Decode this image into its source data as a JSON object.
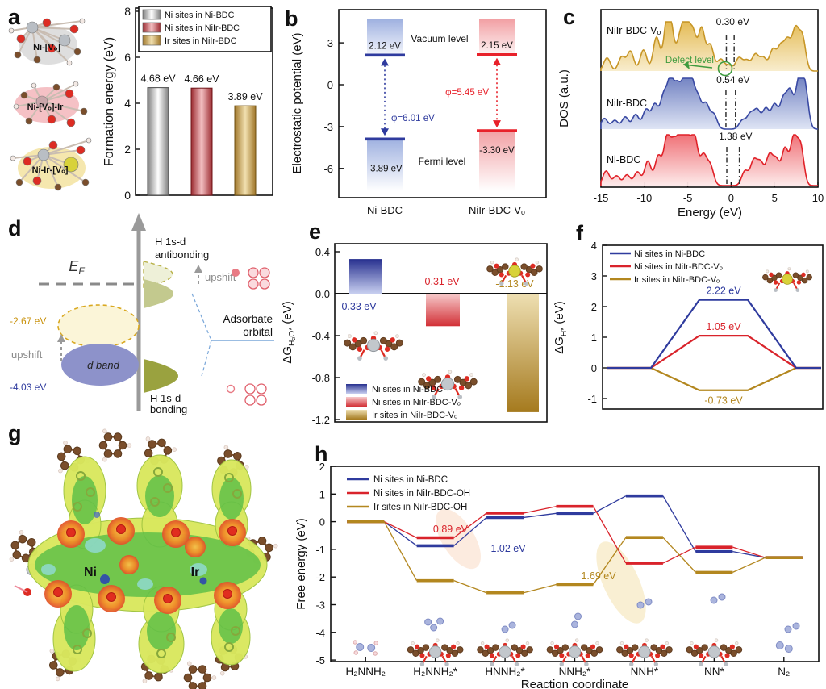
{
  "colors": {
    "blue": "#2f3b9e",
    "red": "#d9232b",
    "gold": "#b3871f",
    "green": "#3f9b3f",
    "gray": "#8a8a8a"
  },
  "panel_a": {
    "letter": "a",
    "structures": [
      {
        "label": "Ni-[Vₒ]"
      },
      {
        "label": "Ni-[Vₒ]-Ir"
      },
      {
        "label": "Ni-Ir-[Vₒ]"
      }
    ],
    "chart_data": {
      "type": "bar",
      "ylabel": "Formation energy (eV)",
      "ylim": [
        0,
        8
      ],
      "yticks": [
        0,
        2,
        4,
        6,
        8
      ],
      "categories": [
        "Ni sites in Ni-BDC",
        "Ni sites in NiIr-BDC",
        "Ir sites in NiIr-BDC"
      ],
      "values": [
        4.68,
        4.66,
        3.89
      ],
      "value_labels": [
        "4.68 eV",
        "4.66 eV",
        "3.89 eV"
      ],
      "legend": [
        "Ni sites in Ni-BDC",
        "Ni sites in NiIr-BDC",
        "Ir sites in NiIr-BDC"
      ],
      "bar_styles": [
        "silver",
        "red",
        "gold"
      ]
    }
  },
  "panel_b": {
    "letter": "b",
    "ylabel": "Electrostatic potential (eV)",
    "yticks": [
      3,
      0,
      -3,
      -6
    ],
    "vacuum_label": "Vacuum level",
    "fermi_label": "Fermi level",
    "chart_data": {
      "type": "level",
      "systems": [
        {
          "name": "Ni-BDC",
          "vacuum_eV": 2.12,
          "fermi_eV": -3.89,
          "vacuum_text": "2.12 eV",
          "fermi_text": "-3.89 eV",
          "work_function": "φ=6.01 eV",
          "color": "blue"
        },
        {
          "name": "NiIr-BDC-Vₒ",
          "vacuum_eV": 2.15,
          "fermi_eV": -3.3,
          "vacuum_text": "2.15 eV",
          "fermi_text": "-3.30 eV",
          "work_function": "φ=5.45 eV",
          "color": "red"
        }
      ]
    }
  },
  "panel_c": {
    "letter": "c",
    "ylabel": "DOS (a.u.)",
    "xlabel": "Energy (eV)",
    "xticks": [
      -15,
      -10,
      -5,
      0,
      5,
      10
    ],
    "xlim": [
      -15,
      10
    ],
    "defect_label": "Defect level",
    "chart_data": {
      "type": "area",
      "curves": [
        {
          "name": "NiIr-BDC-Vₒ",
          "gap_label": "0.30 eV",
          "gap_lines": [
            -0.55,
            0.35
          ],
          "color": "gold",
          "peaks": [
            [
              -14.3,
              0.28
            ],
            [
              -12.6,
              0.3
            ],
            [
              -11.6,
              0.42
            ],
            [
              -10.1,
              0.45
            ],
            [
              -8.6,
              0.72
            ],
            [
              -7.4,
              0.95
            ],
            [
              -6.9,
              0.7
            ],
            [
              -5.9,
              0.65
            ],
            [
              -5.2,
              1.0
            ],
            [
              -4.4,
              0.8
            ],
            [
              -3.4,
              0.9
            ],
            [
              -2.4,
              0.55
            ],
            [
              -1.2,
              0.25
            ],
            [
              -0.25,
              0.12
            ],
            [
              0.9,
              0.28
            ],
            [
              1.8,
              0.22
            ],
            [
              2.8,
              0.35
            ],
            [
              3.7,
              0.28
            ],
            [
              4.8,
              0.45
            ],
            [
              5.7,
              0.5
            ],
            [
              6.5,
              0.62
            ],
            [
              7.4,
              0.85
            ],
            [
              8.2,
              0.72
            ]
          ]
        },
        {
          "name": "NiIr-BDC",
          "gap_label": "0.54 eV",
          "gap_lines": [
            -0.6,
            0.5
          ],
          "color": "blue",
          "peaks": [
            [
              -14.6,
              0.22
            ],
            [
              -13.4,
              0.18
            ],
            [
              -12.2,
              0.25
            ],
            [
              -11.0,
              0.3
            ],
            [
              -9.8,
              0.4
            ],
            [
              -8.8,
              0.5
            ],
            [
              -7.8,
              0.65
            ],
            [
              -7.0,
              0.95
            ],
            [
              -6.2,
              0.8
            ],
            [
              -5.4,
              0.9
            ],
            [
              -4.6,
              0.95
            ],
            [
              -3.8,
              0.6
            ],
            [
              -2.9,
              0.5
            ],
            [
              -2.0,
              0.3
            ],
            [
              1.3,
              0.18
            ],
            [
              2.2,
              0.3
            ],
            [
              3.0,
              0.38
            ],
            [
              4.0,
              0.42
            ],
            [
              5.0,
              0.5
            ],
            [
              6.0,
              0.6
            ],
            [
              6.8,
              0.75
            ],
            [
              7.8,
              0.95
            ],
            [
              8.5,
              0.85
            ]
          ]
        },
        {
          "name": "Ni-BDC",
          "gap_label": "1.38 eV",
          "gap_lines": [
            -0.5,
            0.95
          ],
          "color": "red",
          "peaks": [
            [
              -14.4,
              0.3
            ],
            [
              -13.2,
              0.2
            ],
            [
              -12.0,
              0.22
            ],
            [
              -10.8,
              0.28
            ],
            [
              -9.6,
              0.5
            ],
            [
              -8.4,
              0.6
            ],
            [
              -7.4,
              0.95
            ],
            [
              -6.6,
              0.8
            ],
            [
              -5.8,
              1.0
            ],
            [
              -5.0,
              0.85
            ],
            [
              -4.2,
              0.95
            ],
            [
              -3.2,
              0.6
            ],
            [
              -2.4,
              0.4
            ],
            [
              1.6,
              0.3
            ],
            [
              2.6,
              0.5
            ],
            [
              3.4,
              0.45
            ],
            [
              4.4,
              0.6
            ],
            [
              5.2,
              0.5
            ],
            [
              6.2,
              0.75
            ],
            [
              7.2,
              0.95
            ],
            [
              8.0,
              0.8
            ]
          ]
        }
      ]
    }
  },
  "panel_d": {
    "letter": "d",
    "ef_base": "E",
    "ef_sub": "F",
    "dband_label": "d band",
    "upshift_left": "upshift",
    "upshift_right": "upshift",
    "antibonding_1": "H 1s-d",
    "antibonding_2": "antibonding",
    "bonding_1": "H 1s-d",
    "bonding_2": "bonding",
    "adsorbate_1": "Adsorbate",
    "adsorbate_2": "orbital",
    "val_gold": "-2.67 eV",
    "val_blue": "-4.03 eV"
  },
  "panel_e": {
    "letter": "e",
    "ylabel_pre": "ΔG",
    "ylabel_sub": "H₂O*",
    "ylabel_post": " (eV)",
    "yticks": [
      "0.4",
      "0.0",
      "-0.4",
      "-0.8",
      "-1.2"
    ],
    "legend": [
      "Ni sites in Ni-BDC",
      "Ni sites in NiIr-BDC-Vₒ",
      "Ir sites in NiIr-BDC-Vₒ"
    ],
    "chart_data": {
      "type": "bar",
      "ylim": [
        -1.25,
        0.48
      ],
      "categories": [
        "Ni sites in Ni-BDC",
        "Ni sites in NiIr-BDC-Vₒ",
        "Ir sites in NiIr-BDC-Vₒ"
      ],
      "values": [
        0.33,
        -0.31,
        -1.13
      ],
      "value_labels": [
        "0.33 eV",
        "-0.31 eV",
        "-1.13 eV"
      ],
      "bar_styles": [
        "blue",
        "red",
        "gold"
      ]
    }
  },
  "panel_f": {
    "letter": "f",
    "ylabel_pre": "ΔG",
    "ylabel_sub": "H*",
    "ylabel_post": " (eV)",
    "yticks": [
      4,
      3,
      2,
      1,
      0,
      -1
    ],
    "chart_data": {
      "type": "line",
      "ylim": [
        -1.4,
        4
      ],
      "legend": [
        "Ni sites in Ni-BDC",
        "Ni sites in NiIr-BDC-Vₒ",
        "Ir sites in NiIr-BDC-Vₒ"
      ],
      "series": [
        {
          "name": "Ni sites in Ni-BDC",
          "color": "blue",
          "plateau": 2.22,
          "label": "2.22 eV"
        },
        {
          "name": "Ni sites in NiIr-BDC-Vₒ",
          "color": "red",
          "plateau": 1.05,
          "label": "1.05 eV"
        },
        {
          "name": "Ir sites in NiIr-BDC-Vₒ",
          "color": "gold",
          "plateau": -0.73,
          "label": "-0.73 eV"
        }
      ]
    }
  },
  "panel_g": {
    "letter": "g",
    "atom_labels": [
      "Ni",
      "Ir"
    ]
  },
  "panel_h": {
    "letter": "h",
    "ylabel": "Free energy (eV)",
    "xlabel": "Reaction coordinate",
    "yticks": [
      2,
      1,
      0,
      -1,
      -2,
      -3,
      -4,
      -5
    ],
    "chart_data": {
      "type": "line",
      "ylim": [
        -5,
        2
      ],
      "categories": [
        "H₂NNH₂",
        "H₂NNH₂*",
        "HNNH₂*",
        "NNH₂*",
        "NNH*",
        "NN*",
        "N₂"
      ],
      "series": [
        {
          "name": "Ni sites in Ni-BDC",
          "color": "blue",
          "values": [
            0,
            -0.87,
            0.15,
            0.3,
            0.93,
            -1.08,
            -1.3
          ]
        },
        {
          "name": "Ni sites in NiIr-BDC-OH",
          "color": "red",
          "values": [
            0,
            -0.58,
            0.31,
            0.55,
            -1.5,
            -0.92,
            -1.3
          ]
        },
        {
          "name": "Ir sites in NiIr-BDC-OH",
          "color": "gold",
          "values": [
            0,
            -2.13,
            -2.57,
            -2.27,
            -0.57,
            -1.83,
            -1.3
          ]
        }
      ],
      "barrier_labels": [
        {
          "text": "0.89 eV",
          "color": "red"
        },
        {
          "text": "1.02 eV",
          "color": "blue"
        },
        {
          "text": "1.69 eV",
          "color": "gold"
        }
      ]
    }
  }
}
